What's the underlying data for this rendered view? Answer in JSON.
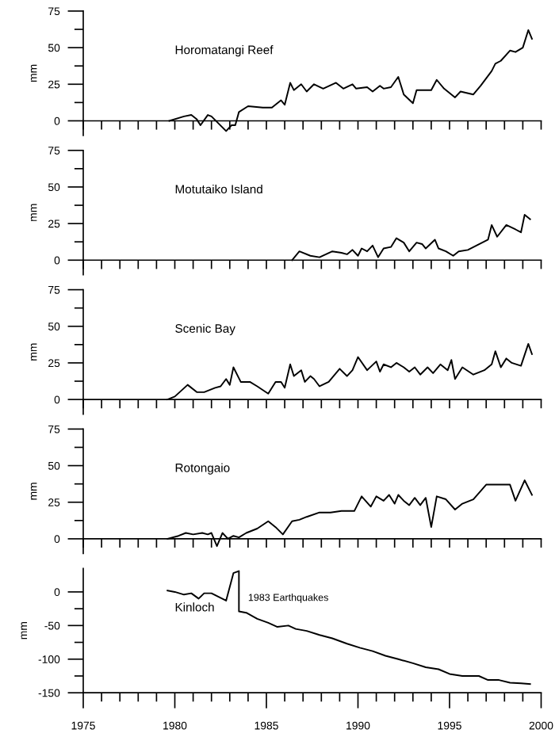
{
  "chart_data": [
    {
      "type": "line",
      "title": "Horomatangi Reef",
      "ylabel": "mm",
      "color": "#000000",
      "tick_labels": "y",
      "xlim": [
        1975,
        2000
      ],
      "ylim": [
        -10,
        75
      ],
      "xticks": [
        {
          "value": 1975,
          "label": null
        },
        {
          "value": 1976,
          "label": null
        },
        {
          "value": 1977,
          "label": null
        },
        {
          "value": 1978,
          "label": null
        },
        {
          "value": 1979,
          "label": null
        },
        {
          "value": 1980,
          "label": null
        },
        {
          "value": 1981,
          "label": null
        },
        {
          "value": 1982,
          "label": null
        },
        {
          "value": 1983,
          "label": null
        },
        {
          "value": 1984,
          "label": null
        },
        {
          "value": 1985,
          "label": null
        },
        {
          "value": 1986,
          "label": null
        },
        {
          "value": 1987,
          "label": null
        },
        {
          "value": 1988,
          "label": null
        },
        {
          "value": 1989,
          "label": null
        },
        {
          "value": 1990,
          "label": null
        },
        {
          "value": 1991,
          "label": null
        },
        {
          "value": 1992,
          "label": null
        },
        {
          "value": 1993,
          "label": null
        },
        {
          "value": 1994,
          "label": null
        },
        {
          "value": 1995,
          "label": null
        },
        {
          "value": 1996,
          "label": null
        },
        {
          "value": 1997,
          "label": null
        },
        {
          "value": 1998,
          "label": null
        },
        {
          "value": 1999,
          "label": null
        },
        {
          "value": 2000,
          "label": null
        }
      ],
      "yticks": [
        0,
        {
          "value": 12.5,
          "label": null
        },
        25,
        {
          "value": 37.5,
          "label": null
        },
        50,
        {
          "value": 62.5,
          "label": null
        },
        75
      ],
      "x": [
        1979.7,
        1980.5,
        1980.9,
        1981.2,
        1981.4,
        1981.8,
        1982.0,
        1982.8,
        1983.1,
        1983.3,
        1983.5,
        1984.0,
        1984.8,
        1985.3,
        1985.8,
        1986.0,
        1986.3,
        1986.5,
        1986.9,
        1987.2,
        1987.6,
        1988.1,
        1988.8,
        1989.2,
        1989.7,
        1989.9,
        1990.5,
        1990.8,
        1991.2,
        1991.4,
        1991.8,
        1992.2,
        1992.5,
        1993.0,
        1993.2,
        1994.0,
        1994.3,
        1994.7,
        1995.3,
        1995.6,
        1996.3,
        1996.7,
        1997.3,
        1997.5,
        1997.8,
        1998.3,
        1998.6,
        1999.0,
        1999.3,
        1999.5
      ],
      "values": [
        0,
        3,
        4,
        1,
        -3,
        4,
        3,
        -7,
        -3,
        -3,
        6,
        10,
        9,
        9,
        14,
        11,
        26,
        21,
        25,
        20,
        25,
        22,
        26,
        22,
        25,
        22,
        23,
        20,
        24,
        22,
        23,
        30,
        18,
        12,
        21,
        21,
        28,
        22,
        16,
        20,
        18,
        24,
        34,
        39,
        41,
        48,
        47,
        50,
        62,
        56
      ]
    },
    {
      "type": "line",
      "title": "Motutaiko Island",
      "ylabel": "mm",
      "color": "#000000",
      "tick_labels": "y",
      "xlim": [
        1975,
        2000
      ],
      "ylim": [
        -10,
        75
      ],
      "xticks": [
        {
          "value": 1975,
          "label": null
        },
        {
          "value": 1976,
          "label": null
        },
        {
          "value": 1977,
          "label": null
        },
        {
          "value": 1978,
          "label": null
        },
        {
          "value": 1979,
          "label": null
        },
        {
          "value": 1980,
          "label": null
        },
        {
          "value": 1981,
          "label": null
        },
        {
          "value": 1982,
          "label": null
        },
        {
          "value": 1983,
          "label": null
        },
        {
          "value": 1984,
          "label": null
        },
        {
          "value": 1985,
          "label": null
        },
        {
          "value": 1986,
          "label": null
        },
        {
          "value": 1987,
          "label": null
        },
        {
          "value": 1988,
          "label": null
        },
        {
          "value": 1989,
          "label": null
        },
        {
          "value": 1990,
          "label": null
        },
        {
          "value": 1991,
          "label": null
        },
        {
          "value": 1992,
          "label": null
        },
        {
          "value": 1993,
          "label": null
        },
        {
          "value": 1994,
          "label": null
        },
        {
          "value": 1995,
          "label": null
        },
        {
          "value": 1996,
          "label": null
        },
        {
          "value": 1997,
          "label": null
        },
        {
          "value": 1998,
          "label": null
        },
        {
          "value": 1999,
          "label": null
        },
        {
          "value": 2000,
          "label": null
        }
      ],
      "yticks": [
        0,
        {
          "value": 12.5,
          "label": null
        },
        25,
        {
          "value": 37.5,
          "label": null
        },
        50,
        {
          "value": 62.5,
          "label": null
        },
        75
      ],
      "x": [
        1986.4,
        1986.8,
        1987.4,
        1987.9,
        1988.6,
        1989.1,
        1989.4,
        1989.7,
        1990.0,
        1990.2,
        1990.5,
        1990.8,
        1991.1,
        1991.4,
        1991.8,
        1992.1,
        1992.5,
        1992.8,
        1993.2,
        1993.5,
        1993.7,
        1994.2,
        1994.4,
        1994.8,
        1995.2,
        1995.5,
        1996.0,
        1997.1,
        1997.3,
        1997.6,
        1998.1,
        1998.6,
        1998.9,
        1999.1,
        1999.4
      ],
      "values": [
        0,
        6,
        3,
        2,
        6,
        5,
        4,
        7,
        3,
        8,
        6,
        10,
        2,
        8,
        9,
        15,
        12,
        6,
        12,
        11,
        8,
        14,
        8,
        6,
        3,
        6,
        7,
        14,
        24,
        16,
        24,
        21,
        19,
        31,
        28
      ]
    },
    {
      "type": "line",
      "title": "Scenic Bay",
      "ylabel": "mm",
      "color": "#000000",
      "tick_labels": "y",
      "xlim": [
        1975,
        2000
      ],
      "ylim": [
        -10,
        75
      ],
      "xticks": [
        {
          "value": 1975,
          "label": null
        },
        {
          "value": 1976,
          "label": null
        },
        {
          "value": 1977,
          "label": null
        },
        {
          "value": 1978,
          "label": null
        },
        {
          "value": 1979,
          "label": null
        },
        {
          "value": 1980,
          "label": null
        },
        {
          "value": 1981,
          "label": null
        },
        {
          "value": 1982,
          "label": null
        },
        {
          "value": 1983,
          "label": null
        },
        {
          "value": 1984,
          "label": null
        },
        {
          "value": 1985,
          "label": null
        },
        {
          "value": 1986,
          "label": null
        },
        {
          "value": 1987,
          "label": null
        },
        {
          "value": 1988,
          "label": null
        },
        {
          "value": 1989,
          "label": null
        },
        {
          "value": 1990,
          "label": null
        },
        {
          "value": 1991,
          "label": null
        },
        {
          "value": 1992,
          "label": null
        },
        {
          "value": 1993,
          "label": null
        },
        {
          "value": 1994,
          "label": null
        },
        {
          "value": 1995,
          "label": null
        },
        {
          "value": 1996,
          "label": null
        },
        {
          "value": 1997,
          "label": null
        },
        {
          "value": 1998,
          "label": null
        },
        {
          "value": 1999,
          "label": null
        },
        {
          "value": 2000,
          "label": null
        }
      ],
      "yticks": [
        0,
        {
          "value": 12.5,
          "label": null
        },
        25,
        {
          "value": 37.5,
          "label": null
        },
        50,
        {
          "value": 62.5,
          "label": null
        },
        75
      ],
      "x": [
        1979.6,
        1980.0,
        1980.7,
        1981.2,
        1981.6,
        1982.2,
        1982.5,
        1982.8,
        1983.0,
        1983.2,
        1983.6,
        1984.1,
        1984.5,
        1985.1,
        1985.5,
        1985.8,
        1986.0,
        1986.3,
        1986.5,
        1986.9,
        1987.1,
        1987.4,
        1987.6,
        1987.9,
        1988.4,
        1989.0,
        1989.4,
        1989.7,
        1990.0,
        1990.5,
        1991.0,
        1991.2,
        1991.4,
        1991.8,
        1992.1,
        1992.5,
        1992.8,
        1993.1,
        1993.4,
        1993.8,
        1994.1,
        1994.5,
        1994.9,
        1995.1,
        1995.3,
        1995.7,
        1996.3,
        1996.9,
        1997.3,
        1997.5,
        1997.8,
        1998.1,
        1998.4,
        1998.9,
        1999.3,
        1999.5
      ],
      "values": [
        0,
        2,
        10,
        5,
        5,
        8,
        9,
        14,
        10,
        22,
        12,
        12,
        9,
        4,
        12,
        12,
        8,
        24,
        16,
        20,
        12,
        16,
        14,
        9,
        12,
        21,
        16,
        20,
        29,
        20,
        26,
        19,
        24,
        22,
        25,
        22,
        19,
        22,
        17,
        22,
        18,
        24,
        20,
        27,
        14,
        22,
        17,
        20,
        24,
        33,
        22,
        28,
        25,
        23,
        38,
        31
      ]
    },
    {
      "type": "line",
      "title": "Rotongaio",
      "ylabel": "mm",
      "color": "#000000",
      "tick_labels": "y",
      "xlim": [
        1975,
        2000
      ],
      "ylim": [
        -10,
        75
      ],
      "xticks": [
        {
          "value": 1975,
          "label": null
        },
        {
          "value": 1976,
          "label": null
        },
        {
          "value": 1977,
          "label": null
        },
        {
          "value": 1978,
          "label": null
        },
        {
          "value": 1979,
          "label": null
        },
        {
          "value": 1980,
          "label": null
        },
        {
          "value": 1981,
          "label": null
        },
        {
          "value": 1982,
          "label": null
        },
        {
          "value": 1983,
          "label": null
        },
        {
          "value": 1984,
          "label": null
        },
        {
          "value": 1985,
          "label": null
        },
        {
          "value": 1986,
          "label": null
        },
        {
          "value": 1987,
          "label": null
        },
        {
          "value": 1988,
          "label": null
        },
        {
          "value": 1989,
          "label": null
        },
        {
          "value": 1990,
          "label": null
        },
        {
          "value": 1991,
          "label": null
        },
        {
          "value": 1992,
          "label": null
        },
        {
          "value": 1993,
          "label": null
        },
        {
          "value": 1994,
          "label": null
        },
        {
          "value": 1995,
          "label": null
        },
        {
          "value": 1996,
          "label": null
        },
        {
          "value": 1997,
          "label": null
        },
        {
          "value": 1998,
          "label": null
        },
        {
          "value": 1999,
          "label": null
        },
        {
          "value": 2000,
          "label": null
        }
      ],
      "yticks": [
        0,
        {
          "value": 12.5,
          "label": null
        },
        25,
        {
          "value": 37.5,
          "label": null
        },
        50,
        {
          "value": 62.5,
          "label": null
        },
        75
      ],
      "x": [
        1979.6,
        1980.2,
        1980.6,
        1981.0,
        1981.5,
        1981.8,
        1982.0,
        1982.3,
        1982.6,
        1982.9,
        1983.2,
        1983.5,
        1983.9,
        1984.5,
        1985.1,
        1985.5,
        1985.9,
        1986.4,
        1986.8,
        1987.2,
        1987.9,
        1988.5,
        1989.1,
        1989.8,
        1990.2,
        1990.7,
        1991.0,
        1991.4,
        1991.7,
        1992.0,
        1992.2,
        1992.5,
        1992.8,
        1993.1,
        1993.4,
        1993.7,
        1994.0,
        1994.3,
        1994.8,
        1995.3,
        1995.7,
        1996.3,
        1997.0,
        1998.3,
        1998.6,
        1999.1,
        1999.5
      ],
      "values": [
        0,
        2,
        4,
        3,
        4,
        3,
        4,
        -5,
        4,
        0,
        2,
        1,
        4,
        7,
        12,
        8,
        3,
        12,
        13,
        15,
        18,
        18,
        19,
        19,
        29,
        22,
        29,
        26,
        30,
        24,
        30,
        26,
        23,
        28,
        23,
        28,
        8,
        29,
        27,
        20,
        24,
        27,
        37,
        37,
        26,
        40,
        30
      ]
    },
    {
      "type": "line",
      "title": "Kinloch",
      "ylabel": "mm",
      "color": "#000000",
      "xlim": [
        1975,
        2000
      ],
      "ylim": [
        -150,
        35
      ],
      "xticks": [
        1975,
        {
          "value": 1976,
          "label": null
        },
        {
          "value": 1977,
          "label": null
        },
        {
          "value": 1978,
          "label": null
        },
        {
          "value": 1979,
          "label": null
        },
        1980,
        {
          "value": 1981,
          "label": null
        },
        {
          "value": 1982,
          "label": null
        },
        {
          "value": 1983,
          "label": null
        },
        {
          "value": 1984,
          "label": null
        },
        1985,
        {
          "value": 1986,
          "label": null
        },
        {
          "value": 1987,
          "label": null
        },
        {
          "value": 1988,
          "label": null
        },
        {
          "value": 1989,
          "label": null
        },
        1990,
        {
          "value": 1991,
          "label": null
        },
        {
          "value": 1992,
          "label": null
        },
        {
          "value": 1993,
          "label": null
        },
        {
          "value": 1994,
          "label": null
        },
        1995,
        {
          "value": 1996,
          "label": null
        },
        {
          "value": 1997,
          "label": null
        },
        {
          "value": 1998,
          "label": null
        },
        {
          "value": 1999,
          "label": null
        },
        2000
      ],
      "yticks": [
        -150,
        {
          "value": -125,
          "label": null
        },
        -100,
        {
          "value": -75,
          "label": null
        },
        -50,
        {
          "value": -25,
          "label": null
        },
        0
      ],
      "annotations": [
        "1983 Earthquakes"
      ],
      "x": [
        1979.6,
        1980.0,
        1980.5,
        1980.9,
        1981.3,
        1981.6,
        1982.0,
        1982.8,
        1983.2,
        1983.5,
        1983.5,
        1983.9,
        1984.5,
        1985.1,
        1985.6,
        1986.2,
        1986.6,
        1987.2,
        1987.9,
        1988.6,
        1989.4,
        1990.1,
        1990.8,
        1991.5,
        1992.2,
        1993.0,
        1993.7,
        1994.4,
        1995.0,
        1995.7,
        1996.6,
        1997.1,
        1997.7,
        1998.3,
        1998.9,
        1999.4
      ],
      "values": [
        2,
        0,
        -4,
        -2,
        -10,
        -2,
        -2,
        -13,
        28,
        31,
        -29,
        -31,
        -40,
        -46,
        -52,
        -50,
        -55,
        -58,
        -64,
        -69,
        -77,
        -83,
        -88,
        -95,
        -100,
        -106,
        -112,
        -115,
        -122,
        -125,
        -125,
        -131,
        -131,
        -135,
        -136,
        -137
      ]
    }
  ]
}
